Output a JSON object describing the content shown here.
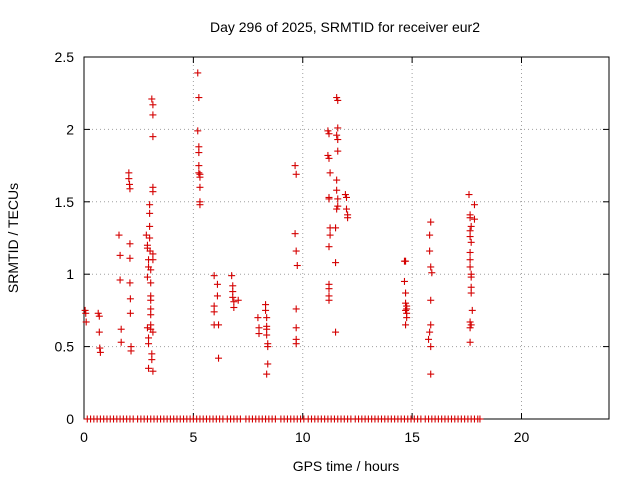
{
  "chart_data": {
    "type": "scatter",
    "title": "Day 296 of 2025, SRMTID for receiver eur2",
    "xlabel": "GPS time / hours",
    "ylabel": "SRMTID / TECUs",
    "xlim": [
      0,
      24
    ],
    "ylim": [
      0,
      2.5
    ],
    "xticks": [
      0,
      5,
      10,
      15,
      20
    ],
    "yticks": [
      0,
      0.5,
      1,
      1.5,
      2,
      2.5
    ],
    "xtick_labels": [
      "0",
      "5",
      "10",
      "15",
      "20"
    ],
    "ytick_labels": [
      "0",
      "0.5",
      "1",
      "1.5",
      "2",
      "2.5"
    ],
    "grid": true,
    "marker": "+",
    "color": "#d40000",
    "series": [
      {
        "name": "SRMTID",
        "points": [
          [
            0.05,
            0.75
          ],
          [
            0.08,
            0.73
          ],
          [
            0.1,
            0.67
          ],
          [
            0.65,
            0.73
          ],
          [
            0.7,
            0.71
          ],
          [
            0.7,
            0.6
          ],
          [
            0.72,
            0.49
          ],
          [
            0.75,
            0.46
          ],
          [
            1.6,
            1.27
          ],
          [
            1.65,
            1.13
          ],
          [
            1.65,
            0.96
          ],
          [
            1.7,
            0.62
          ],
          [
            1.7,
            0.53
          ],
          [
            2.05,
            1.7
          ],
          [
            2.05,
            1.66
          ],
          [
            2.08,
            1.62
          ],
          [
            2.1,
            1.59
          ],
          [
            2.1,
            1.21
          ],
          [
            2.1,
            1.11
          ],
          [
            2.1,
            0.94
          ],
          [
            2.12,
            0.83
          ],
          [
            2.12,
            0.73
          ],
          [
            2.15,
            0.5
          ],
          [
            2.15,
            0.47
          ],
          [
            2.85,
            1.27
          ],
          [
            2.9,
            1.2
          ],
          [
            2.9,
            1.18
          ],
          [
            2.95,
            1.1
          ],
          [
            2.95,
            1.05
          ],
          [
            2.9,
            0.98
          ],
          [
            2.9,
            0.63
          ],
          [
            2.95,
            0.56
          ],
          [
            2.95,
            0.52
          ],
          [
            2.95,
            0.35
          ],
          [
            3.0,
            1.48
          ],
          [
            3.0,
            1.42
          ],
          [
            3.0,
            1.33
          ],
          [
            3.0,
            1.25
          ],
          [
            3.02,
            1.16
          ],
          [
            3.05,
            1.03
          ],
          [
            3.05,
            0.94
          ],
          [
            3.05,
            0.85
          ],
          [
            3.05,
            0.82
          ],
          [
            3.05,
            0.76
          ],
          [
            3.05,
            0.72
          ],
          [
            3.05,
            0.65
          ],
          [
            3.05,
            0.62
          ],
          [
            3.1,
            0.45
          ],
          [
            3.1,
            0.41
          ],
          [
            3.1,
            2.21
          ],
          [
            3.15,
            2.17
          ],
          [
            3.15,
            2.1
          ],
          [
            3.15,
            1.95
          ],
          [
            3.15,
            1.6
          ],
          [
            3.15,
            1.57
          ],
          [
            3.15,
            1.14
          ],
          [
            3.15,
            1.1
          ],
          [
            3.15,
            0.6
          ],
          [
            3.15,
            0.33
          ],
          [
            5.2,
            2.39
          ],
          [
            5.25,
            2.22
          ],
          [
            5.2,
            1.99
          ],
          [
            5.25,
            1.88
          ],
          [
            5.25,
            1.84
          ],
          [
            5.25,
            1.75
          ],
          [
            5.25,
            1.7
          ],
          [
            5.3,
            1.67
          ],
          [
            5.3,
            1.6
          ],
          [
            5.3,
            1.5
          ],
          [
            5.3,
            1.48
          ],
          [
            5.3,
            1.69
          ],
          [
            5.95,
            0.99
          ],
          [
            5.95,
            0.78
          ],
          [
            5.95,
            0.74
          ],
          [
            5.95,
            0.65
          ],
          [
            6.1,
            0.93
          ],
          [
            6.1,
            0.85
          ],
          [
            6.15,
            0.65
          ],
          [
            6.15,
            0.42
          ],
          [
            6.75,
            0.99
          ],
          [
            6.8,
            0.92
          ],
          [
            6.8,
            0.88
          ],
          [
            6.8,
            0.84
          ],
          [
            6.85,
            0.81
          ],
          [
            6.85,
            0.77
          ],
          [
            7.05,
            0.82
          ],
          [
            7.95,
            0.7
          ],
          [
            8.0,
            0.63
          ],
          [
            8.0,
            0.59
          ],
          [
            8.3,
            0.79
          ],
          [
            8.3,
            0.75
          ],
          [
            8.35,
            0.7
          ],
          [
            8.35,
            0.64
          ],
          [
            8.35,
            0.62
          ],
          [
            8.35,
            0.58
          ],
          [
            8.4,
            0.52
          ],
          [
            8.4,
            0.5
          ],
          [
            8.4,
            0.38
          ],
          [
            8.35,
            0.31
          ],
          [
            9.65,
            1.75
          ],
          [
            9.7,
            1.69
          ],
          [
            9.65,
            1.28
          ],
          [
            9.7,
            1.16
          ],
          [
            9.75,
            1.06
          ],
          [
            9.7,
            0.76
          ],
          [
            9.7,
            0.63
          ],
          [
            9.7,
            0.55
          ],
          [
            9.7,
            0.52
          ],
          [
            11.15,
            1.99
          ],
          [
            11.2,
            1.97
          ],
          [
            11.15,
            1.82
          ],
          [
            11.2,
            1.8
          ],
          [
            11.25,
            1.7
          ],
          [
            11.2,
            1.53
          ],
          [
            11.2,
            1.52
          ],
          [
            11.25,
            1.32
          ],
          [
            11.25,
            1.27
          ],
          [
            11.2,
            1.19
          ],
          [
            11.2,
            0.93
          ],
          [
            11.2,
            0.9
          ],
          [
            11.2,
            0.85
          ],
          [
            11.2,
            0.82
          ],
          [
            11.55,
            2.22
          ],
          [
            11.6,
            2.2
          ],
          [
            11.6,
            2.01
          ],
          [
            11.55,
            1.96
          ],
          [
            11.6,
            1.93
          ],
          [
            11.6,
            1.85
          ],
          [
            11.55,
            1.65
          ],
          [
            11.55,
            1.58
          ],
          [
            11.6,
            1.52
          ],
          [
            11.6,
            1.47
          ],
          [
            11.55,
            1.45
          ],
          [
            11.5,
            1.32
          ],
          [
            11.5,
            1.08
          ],
          [
            11.5,
            0.6
          ],
          [
            11.95,
            1.55
          ],
          [
            12.0,
            1.53
          ],
          [
            12.0,
            1.45
          ],
          [
            12.05,
            1.41
          ],
          [
            12.05,
            1.39
          ],
          [
            14.65,
            1.09
          ],
          [
            14.7,
            1.09
          ],
          [
            14.65,
            0.95
          ],
          [
            14.7,
            0.87
          ],
          [
            14.7,
            0.8
          ],
          [
            14.75,
            0.78
          ],
          [
            14.75,
            0.76
          ],
          [
            14.7,
            0.75
          ],
          [
            14.75,
            0.73
          ],
          [
            14.75,
            0.7
          ],
          [
            14.7,
            0.65
          ],
          [
            15.85,
            1.36
          ],
          [
            15.8,
            1.27
          ],
          [
            15.8,
            1.16
          ],
          [
            15.85,
            1.05
          ],
          [
            15.9,
            1.01
          ],
          [
            15.85,
            0.82
          ],
          [
            15.85,
            0.65
          ],
          [
            15.8,
            0.6
          ],
          [
            15.75,
            0.55
          ],
          [
            15.85,
            0.5
          ],
          [
            15.85,
            0.31
          ],
          [
            17.6,
            1.55
          ],
          [
            17.65,
            1.41
          ],
          [
            17.65,
            1.39
          ],
          [
            17.7,
            1.33
          ],
          [
            17.65,
            1.3
          ],
          [
            17.65,
            1.26
          ],
          [
            17.7,
            1.22
          ],
          [
            17.65,
            1.15
          ],
          [
            17.65,
            1.1
          ],
          [
            17.65,
            1.05
          ],
          [
            17.7,
            1.0
          ],
          [
            17.7,
            0.98
          ],
          [
            17.7,
            0.91
          ],
          [
            17.7,
            0.87
          ],
          [
            17.75,
            0.75
          ],
          [
            17.65,
            0.67
          ],
          [
            17.7,
            0.65
          ],
          [
            17.65,
            0.63
          ],
          [
            17.65,
            0.53
          ],
          [
            17.85,
            1.48
          ],
          [
            17.85,
            1.38
          ]
        ],
        "zero_points_x": [
          0.15,
          0.3,
          0.45,
          0.6,
          0.75,
          0.9,
          1.05,
          1.2,
          1.35,
          1.5,
          1.65,
          1.8,
          1.95,
          2.1,
          2.25,
          2.45,
          2.6,
          2.75,
          2.9,
          3.05,
          3.2,
          3.35,
          3.5,
          3.65,
          3.8,
          3.95,
          4.1,
          4.25,
          4.4,
          4.55,
          4.7,
          4.85,
          5.0,
          5.15,
          5.3,
          5.45,
          5.6,
          5.75,
          5.9,
          6.05,
          6.2,
          6.35,
          6.55,
          6.7,
          6.85,
          7.0,
          7.15,
          7.4,
          7.55,
          7.7,
          7.85,
          8.0,
          8.15,
          8.3,
          8.45,
          8.6,
          8.75,
          9.0,
          9.15,
          9.3,
          9.45,
          9.6,
          9.75,
          9.9,
          10.05,
          10.25,
          10.4,
          10.55,
          10.7,
          10.85,
          11.0,
          11.15,
          11.3,
          11.45,
          11.6,
          11.75,
          11.9,
          12.05,
          12.2,
          12.4,
          12.55,
          12.7,
          12.85,
          13.0,
          13.15,
          13.3,
          13.45,
          13.6,
          13.75,
          13.9,
          14.05,
          14.2,
          14.35,
          14.5,
          14.65,
          14.8,
          14.95,
          15.1,
          15.25,
          15.4,
          15.6,
          15.75,
          15.9,
          16.05,
          16.2,
          16.35,
          16.5,
          16.65,
          16.8,
          16.95,
          17.1,
          17.25,
          17.4,
          17.55,
          17.7,
          17.85,
          18.0,
          18.1
        ]
      }
    ]
  }
}
